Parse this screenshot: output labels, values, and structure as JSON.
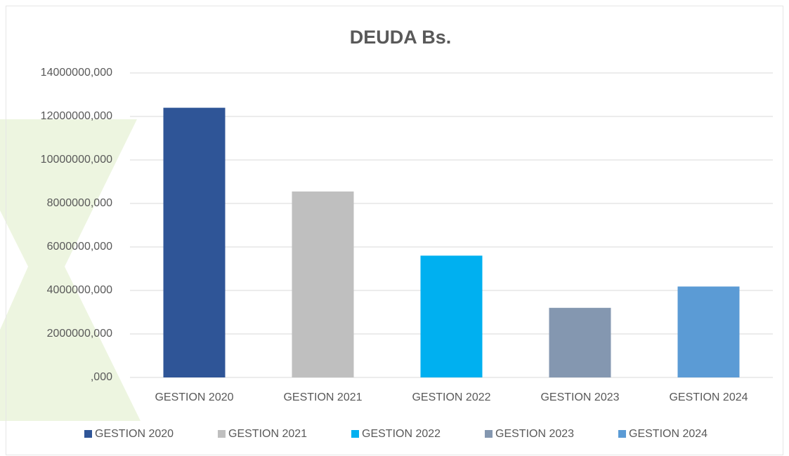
{
  "chart_data": {
    "type": "bar",
    "title": "DEUDA Bs.",
    "categories": [
      "GESTION 2020",
      "GESTION 2021",
      "GESTION 2022",
      "GESTION 2023",
      "GESTION 2024"
    ],
    "values": [
      12400000,
      8550000,
      5600000,
      3200000,
      4180000
    ],
    "colors": [
      "#2f5597",
      "#bfbfbf",
      "#00b0f0",
      "#8497b0",
      "#5b9bd5"
    ],
    "ylim": [
      0,
      14000000
    ],
    "yticks": [
      {
        "value": 0,
        "label": ",000"
      },
      {
        "value": 2000000,
        "label": "2000000,000"
      },
      {
        "value": 4000000,
        "label": "4000000,000"
      },
      {
        "value": 6000000,
        "label": "6000000,000"
      },
      {
        "value": 8000000,
        "label": "8000000,000"
      },
      {
        "value": 10000000,
        "label": "10000000,000"
      },
      {
        "value": 12000000,
        "label": "12000000,000"
      },
      {
        "value": 14000000,
        "label": "14000000,000"
      }
    ],
    "grid": true,
    "legend": "bottom"
  }
}
